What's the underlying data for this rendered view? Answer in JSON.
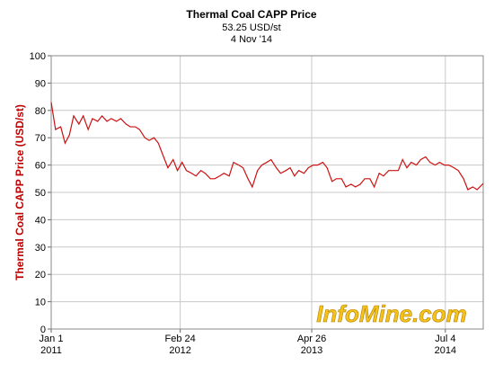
{
  "chart_data": {
    "type": "line",
    "title": "Thermal Coal CAPP Price",
    "subtitle": "53.25 USD/st",
    "date_label": "4 Nov '14",
    "y_label": "Thermal Coal CAPP Price (USD/st)",
    "watermark": "InfoMine.com",
    "x": [
      "2011-01-01",
      "2011-01-15",
      "2011-02-01",
      "2011-02-15",
      "2011-03-01",
      "2011-03-15",
      "2011-04-01",
      "2011-04-15",
      "2011-05-01",
      "2011-05-15",
      "2011-06-01",
      "2011-06-15",
      "2011-07-01",
      "2011-07-15",
      "2011-08-01",
      "2011-08-15",
      "2011-09-01",
      "2011-09-15",
      "2011-10-01",
      "2011-10-15",
      "2011-11-01",
      "2011-11-15",
      "2011-12-01",
      "2011-12-15",
      "2012-01-01",
      "2012-01-15",
      "2012-02-01",
      "2012-02-15",
      "2012-03-01",
      "2012-03-15",
      "2012-04-01",
      "2012-04-15",
      "2012-05-01",
      "2012-05-15",
      "2012-06-01",
      "2012-06-15",
      "2012-07-01",
      "2012-07-15",
      "2012-08-01",
      "2012-08-15",
      "2012-09-01",
      "2012-09-15",
      "2012-10-01",
      "2012-10-15",
      "2012-11-01",
      "2012-11-15",
      "2012-12-01",
      "2012-12-15",
      "2013-01-01",
      "2013-01-15",
      "2013-02-01",
      "2013-02-15",
      "2013-03-01",
      "2013-03-15",
      "2013-04-01",
      "2013-04-15",
      "2013-05-01",
      "2013-05-15",
      "2013-06-01",
      "2013-06-15",
      "2013-07-01",
      "2013-07-15",
      "2013-08-01",
      "2013-08-15",
      "2013-09-01",
      "2013-09-15",
      "2013-10-01",
      "2013-10-15",
      "2013-11-01",
      "2013-11-15",
      "2013-12-01",
      "2013-12-15",
      "2014-01-01",
      "2014-01-15",
      "2014-02-01",
      "2014-02-15",
      "2014-03-01",
      "2014-03-15",
      "2014-04-01",
      "2014-04-15",
      "2014-05-01",
      "2014-05-15",
      "2014-06-01",
      "2014-06-15",
      "2014-07-01",
      "2014-07-15",
      "2014-08-01",
      "2014-08-15",
      "2014-09-01",
      "2014-09-15",
      "2014-10-01",
      "2014-10-15",
      "2014-11-04"
    ],
    "series": [
      {
        "name": "Thermal Coal CAPP Price",
        "color": "#cc1111",
        "values": [
          83,
          73,
          74,
          68,
          71,
          78,
          75,
          78,
          73,
          77,
          76,
          78,
          76,
          77,
          76,
          77,
          75,
          74,
          74,
          73,
          70,
          69,
          70,
          68,
          63,
          59,
          62,
          58,
          61,
          58,
          57,
          56,
          58,
          57,
          55,
          55,
          56,
          57,
          56,
          61,
          60,
          59,
          55,
          52,
          58,
          60,
          61,
          62,
          59,
          57,
          58,
          59,
          56,
          58,
          57,
          59,
          60,
          60,
          61,
          59,
          54,
          55,
          55,
          52,
          53,
          52,
          53,
          55,
          55,
          52,
          57,
          56,
          58,
          58,
          58,
          62,
          59,
          61,
          60,
          62,
          63,
          61,
          60,
          61,
          60,
          60,
          59,
          58,
          55,
          51,
          52,
          51,
          53.25
        ]
      }
    ],
    "xlim": [
      "2011-01-01",
      "2014-11-04"
    ],
    "xticks": [
      {
        "value": "2011-01-01",
        "label": [
          "Jan 1",
          "2011"
        ]
      },
      {
        "value": "2012-02-24",
        "label": [
          "Feb 24",
          "2012"
        ]
      },
      {
        "value": "2013-04-26",
        "label": [
          "Apr 26",
          "2013"
        ]
      },
      {
        "value": "2014-07-04",
        "label": [
          "Jul 4",
          "2014"
        ]
      }
    ],
    "ylim": [
      0,
      100
    ],
    "yticks": [
      0,
      10,
      20,
      30,
      40,
      50,
      60,
      70,
      80,
      90,
      100
    ],
    "grid": true
  }
}
